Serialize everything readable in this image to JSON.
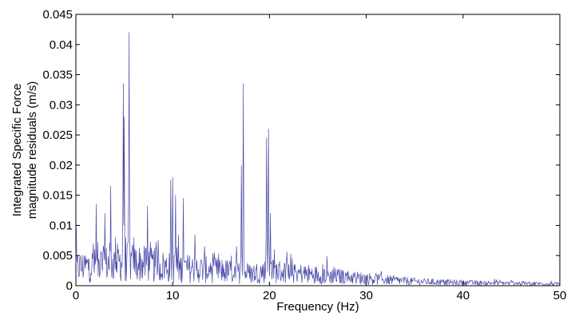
{
  "chart_data": {
    "type": "line",
    "title": "",
    "xlabel": "Frequency (Hz)",
    "ylabel_lines": [
      "Integrated Specific Force",
      "magnitude residuals (m/s)"
    ],
    "xlim": [
      0,
      50
    ],
    "ylim": [
      0,
      0.045
    ],
    "x_ticks": [
      "0",
      "10",
      "20",
      "30",
      "40",
      "50"
    ],
    "y_ticks": [
      "0",
      "0.005",
      "0.01",
      "0.015",
      "0.02",
      "0.025",
      "0.03",
      "0.035",
      "0.04",
      "0.045"
    ],
    "grid": false,
    "line_color": "#4a4aa8",
    "series": [
      {
        "sample_spacing_hz": 0.05,
        "noise_floor": [
          [
            0,
            0.003
          ],
          [
            5,
            0.004
          ],
          [
            10,
            0.003
          ],
          [
            15,
            0.0025
          ],
          [
            18,
            0.002
          ],
          [
            20,
            0.0025
          ],
          [
            22,
            0.0022
          ],
          [
            25,
            0.0018
          ],
          [
            30,
            0.0012
          ],
          [
            35,
            0.0007
          ],
          [
            40,
            0.0005
          ],
          [
            45,
            0.0004
          ],
          [
            50,
            0.0003
          ]
        ],
        "peaks": [
          {
            "x": 0.05,
            "y": 0.0095
          },
          {
            "x": 1.8,
            "y": 0.007
          },
          {
            "x": 2.1,
            "y": 0.0135
          },
          {
            "x": 3.0,
            "y": 0.012
          },
          {
            "x": 3.6,
            "y": 0.0165
          },
          {
            "x": 4.1,
            "y": 0.008
          },
          {
            "x": 4.9,
            "y": 0.0335
          },
          {
            "x": 5.0,
            "y": 0.028
          },
          {
            "x": 5.5,
            "y": 0.042
          },
          {
            "x": 6.0,
            "y": 0.008
          },
          {
            "x": 7.4,
            "y": 0.0132
          },
          {
            "x": 8.5,
            "y": 0.0075
          },
          {
            "x": 9.8,
            "y": 0.0175
          },
          {
            "x": 10.0,
            "y": 0.018
          },
          {
            "x": 10.3,
            "y": 0.015
          },
          {
            "x": 11.1,
            "y": 0.0145
          },
          {
            "x": 12.3,
            "y": 0.0085
          },
          {
            "x": 13.3,
            "y": 0.0065
          },
          {
            "x": 16.6,
            "y": 0.0065
          },
          {
            "x": 17.3,
            "y": 0.0335
          },
          {
            "x": 17.1,
            "y": 0.0199
          },
          {
            "x": 19.7,
            "y": 0.0245
          },
          {
            "x": 19.9,
            "y": 0.026
          },
          {
            "x": 20.1,
            "y": 0.012
          },
          {
            "x": 22.0,
            "y": 0.0035
          },
          {
            "x": 28.0,
            "y": 0.0022
          },
          {
            "x": 35.0,
            "y": 0.0013
          },
          {
            "x": 45.0,
            "y": 0.0009
          }
        ]
      }
    ]
  }
}
